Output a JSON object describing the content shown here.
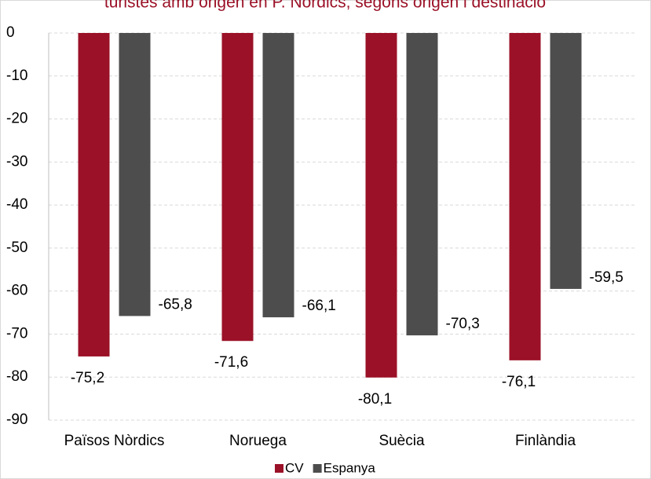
{
  "chart_data": {
    "type": "bar",
    "title": "turistes amb origen en P. Nòrdics, segons origen i destinació",
    "categories": [
      "Països Nòrdics",
      "Noruega",
      "Suècia",
      "Finlàndia"
    ],
    "series": [
      {
        "name": "CV",
        "color": "#9b1127",
        "values": [
          -75.2,
          -71.6,
          -80.1,
          -76.1
        ],
        "value_labels": [
          "-75,2",
          "-71,6",
          "-80,1",
          "-76,1"
        ]
      },
      {
        "name": "Espanya",
        "color": "#4d4d4d",
        "values": [
          -65.8,
          -66.1,
          -70.3,
          -59.5
        ],
        "value_labels": [
          "-65,8",
          "-66,1",
          "-70,3",
          "-59,5"
        ]
      }
    ],
    "ylim": [
      -90,
      0
    ],
    "yticks": [
      0,
      -10,
      -20,
      -30,
      -40,
      -50,
      -60,
      -70,
      -80,
      -90
    ],
    "grid": true,
    "legend": "bottom"
  }
}
